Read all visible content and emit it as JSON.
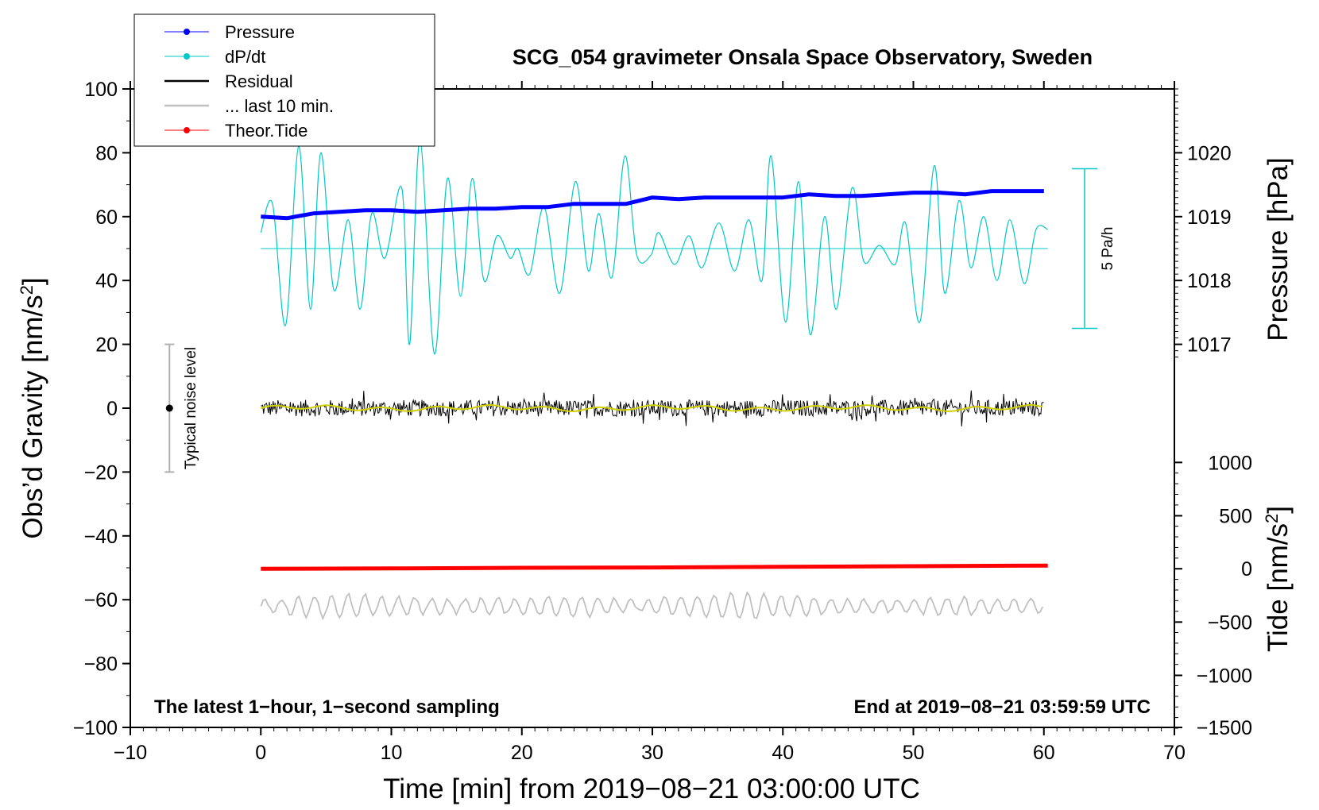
{
  "chart_data": {
    "type": "line",
    "title": "SCG_054 gravimeter Onsala Space Observatory, Sweden",
    "xlabel": "Time [min] from 2019−08−21 03:00:00 UTC",
    "ylabel": "Obs’d Gravity [nm/s²]",
    "ylabel_base": "Obs’d Gravity [nm/s",
    "ylabel_sup": "2",
    "ylabel_end": "]",
    "xlim": [
      -10,
      70
    ],
    "ylim": [
      -100,
      100
    ],
    "x_ticks": [
      "−10",
      "0",
      "10",
      "20",
      "30",
      "40",
      "50",
      "60",
      "70"
    ],
    "x_tick_values": [
      -10,
      0,
      10,
      20,
      30,
      40,
      50,
      60,
      70
    ],
    "y_ticks": [
      "100",
      "80",
      "60",
      "40",
      "20",
      "0",
      "−20",
      "−40",
      "−60",
      "−80",
      "−100"
    ],
    "y_tick_values": [
      100,
      80,
      60,
      40,
      20,
      0,
      -20,
      -40,
      -60,
      -80,
      -100
    ],
    "pressure_axis": {
      "label": "Pressure [hPa]",
      "ticks": [
        "1020",
        "1019",
        "1018",
        "1017"
      ],
      "tick_values": [
        1020,
        1019,
        1018,
        1017
      ],
      "gravity_equivalent": [
        80,
        60,
        40,
        20
      ]
    },
    "tide_axis": {
      "label": "Tide [nm/s²]",
      "label_base": "Tide [nm/s",
      "label_sup": "2",
      "label_end": "]",
      "ticks": [
        "1000",
        "500",
        "0",
        "−500",
        "−1000",
        "−1500"
      ],
      "tick_values": [
        1000,
        500,
        0,
        -500,
        -1000,
        -1500
      ],
      "gravity_equivalent": [
        -17,
        -33.7,
        -50.3,
        -67,
        -83.7,
        -100
      ]
    },
    "legend": {
      "placement": "top-left",
      "entries": [
        {
          "label": "Pressure",
          "color": "#0000ff",
          "marker": true
        },
        {
          "label": "dP/dt",
          "color": "#00c8c8",
          "marker": true
        },
        {
          "label": "Residual",
          "color": "#000000",
          "marker": false
        },
        {
          "label": "... last 10 min.",
          "color": "#c0c0c0",
          "marker": false
        },
        {
          "label": "Theor.Tide",
          "color": "#ff0000",
          "marker": true
        }
      ]
    },
    "series": [
      {
        "name": "Pressure",
        "color": "#0000ff",
        "unit": "gravity-axis units",
        "x": [
          0,
          2,
          4,
          6,
          8,
          10,
          12,
          14,
          16,
          18,
          20,
          22,
          24,
          26,
          28,
          30,
          32,
          34,
          36,
          38,
          40,
          42,
          44,
          46,
          48,
          50,
          52,
          54,
          56,
          58,
          60
        ],
        "values": [
          60,
          59.5,
          61,
          61.5,
          62,
          62,
          61.5,
          62,
          62.5,
          62.5,
          63,
          63,
          64,
          64,
          64,
          66,
          65.5,
          66,
          66,
          66,
          66,
          67,
          66.5,
          66.5,
          67,
          67.5,
          67.5,
          67,
          68,
          68,
          68
        ]
      },
      {
        "name": "dP/dt",
        "color": "#00c8c8",
        "unit": "gravity-axis units",
        "x": [
          0,
          0.9,
          1.9,
          2.9,
          3.8,
          4.6,
          5.6,
          6.7,
          7.6,
          8.5,
          9.5,
          10.8,
          11.4,
          12.2,
          13.3,
          14.3,
          15.3,
          16.2,
          17.1,
          18.1,
          19.1,
          19.7,
          20.6,
          21.7,
          22.9,
          24.1,
          25.1,
          25.9,
          26.9,
          27.9,
          28.8,
          29.9,
          30.5,
          31.7,
          32.8,
          33.8,
          35.1,
          36.3,
          37.4,
          38.4,
          39.1,
          40.2,
          41.2,
          42.1,
          43.2,
          44.1,
          45.3,
          46.2,
          47.4,
          48.6,
          49.4,
          50.5,
          51.6,
          52.4,
          53.5,
          54.4,
          55.4,
          56.4,
          57.4,
          58.5,
          59.4,
          60.3
        ],
        "values": [
          55,
          64,
          26,
          82,
          31,
          80,
          37,
          59,
          31,
          61,
          47,
          69,
          20,
          84,
          17,
          72,
          35,
          72,
          40,
          54,
          47,
          50,
          42,
          63,
          36,
          71,
          43,
          61,
          41,
          79,
          48,
          48,
          55,
          45,
          54,
          44,
          58,
          43,
          59,
          40,
          79,
          27,
          71,
          23,
          60,
          31,
          69,
          46,
          51,
          45,
          58,
          27,
          76,
          36,
          65,
          44,
          60,
          40,
          59,
          39,
          56,
          56
        ]
      },
      {
        "name": "dP/dt reference",
        "color": "#00c8c8",
        "x": [
          0,
          60.3
        ],
        "values": [
          50,
          50
        ]
      },
      {
        "name": "Residual",
        "color": "#000000",
        "x": [
          0,
          60
        ],
        "values": [
          0,
          0
        ],
        "spread": [
          -6,
          7
        ]
      },
      {
        "name": "Residual (yellow)",
        "color": "#d0d000",
        "x": [
          0,
          60
        ],
        "values": [
          0,
          0
        ]
      },
      {
        "name": "... last 10 min.",
        "color": "#c0c0c0",
        "unit": "gravity-axis units (offset)",
        "x": [
          0,
          60
        ],
        "values": [
          -62,
          -62
        ],
        "spread": [
          -68,
          -57
        ]
      },
      {
        "name": "Theor.Tide",
        "color": "#ff0000",
        "unit": "gravity-axis units",
        "x": [
          0,
          10,
          20,
          30,
          40,
          50,
          60.3
        ],
        "values": [
          -50.3,
          -50.2,
          -50,
          -49.9,
          -49.7,
          -49.5,
          -49.3
        ]
      }
    ],
    "noise_bar": {
      "label": "Typical noise level",
      "x": -7,
      "center": 0,
      "low": -20,
      "high": 20
    },
    "dpdt_scale": {
      "label": "5 Pa/h",
      "low": 25,
      "high": 75
    },
    "annotations": [
      {
        "text": "The latest 1−hour, 1−second sampling",
        "placement": "bottom-left"
      },
      {
        "text": "End at 2019−08−21 03:59:59 UTC",
        "placement": "bottom-right"
      }
    ]
  }
}
